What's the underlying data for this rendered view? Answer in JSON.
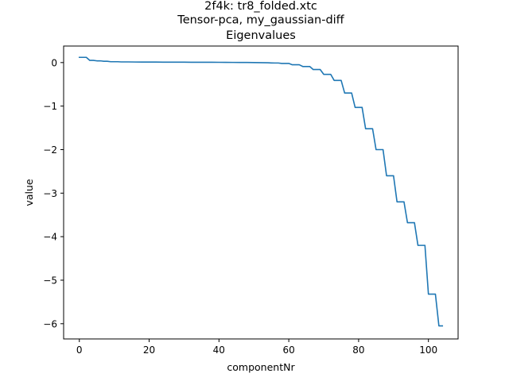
{
  "chart_data": {
    "type": "line",
    "title_lines": [
      "2f4k: tr8_folded.xtc",
      "Tensor-pca, my_gaussian-diff",
      "Eigenvalues"
    ],
    "xlabel": "componentNr",
    "ylabel": "value",
    "xlim": [
      -4.5,
      108.5
    ],
    "ylim": [
      -6.35,
      0.38
    ],
    "xticks": [
      0,
      20,
      40,
      60,
      80,
      100
    ],
    "yticks": [
      0,
      -1,
      -2,
      -3,
      -4,
      -5,
      -6
    ],
    "grid": false,
    "series": [
      {
        "color": "#1f77b4",
        "x": [
          0,
          1,
          2,
          3,
          4,
          5,
          6,
          7,
          8,
          9,
          10,
          11,
          12,
          14,
          16,
          18,
          20,
          22,
          24,
          26,
          28,
          30,
          32,
          34,
          36,
          38,
          40,
          42,
          44,
          46,
          48,
          50,
          52,
          54,
          55,
          56,
          57,
          58,
          59,
          60,
          61,
          62,
          63,
          64,
          65,
          66,
          67,
          68,
          69,
          70,
          71,
          72,
          73,
          74,
          75,
          76,
          77,
          78,
          79,
          80,
          81,
          82,
          83,
          84,
          85,
          86,
          87,
          88,
          89,
          90,
          91,
          92,
          93,
          94,
          95,
          96,
          97,
          98,
          99,
          100,
          101,
          102,
          103,
          104
        ],
        "values": [
          0.12,
          0.12,
          0.12,
          0.05,
          0.05,
          0.04,
          0.04,
          0.03,
          0.03,
          0.02,
          0.02,
          0.02,
          0.015,
          0.015,
          0.013,
          0.012,
          0.012,
          0.011,
          0.01,
          0.01,
          0.009,
          0.009,
          0.008,
          0.008,
          0.007,
          0.007,
          0.006,
          0.005,
          0.004,
          0.003,
          0.002,
          0.0,
          -0.002,
          -0.005,
          -0.008,
          -0.01,
          -0.01,
          -0.02,
          -0.02,
          -0.02,
          -0.05,
          -0.05,
          -0.05,
          -0.09,
          -0.09,
          -0.09,
          -0.16,
          -0.16,
          -0.16,
          -0.27,
          -0.27,
          -0.27,
          -0.41,
          -0.41,
          -0.41,
          -0.7,
          -0.7,
          -0.7,
          -1.03,
          -1.03,
          -1.03,
          -1.52,
          -1.52,
          -1.52,
          -2.0,
          -2.0,
          -2.0,
          -2.6,
          -2.6,
          -2.6,
          -3.2,
          -3.2,
          -3.2,
          -3.68,
          -3.68,
          -3.68,
          -4.2,
          -4.2,
          -4.2,
          -5.32,
          -5.32,
          -5.32,
          -6.05,
          -6.05
        ]
      }
    ]
  }
}
